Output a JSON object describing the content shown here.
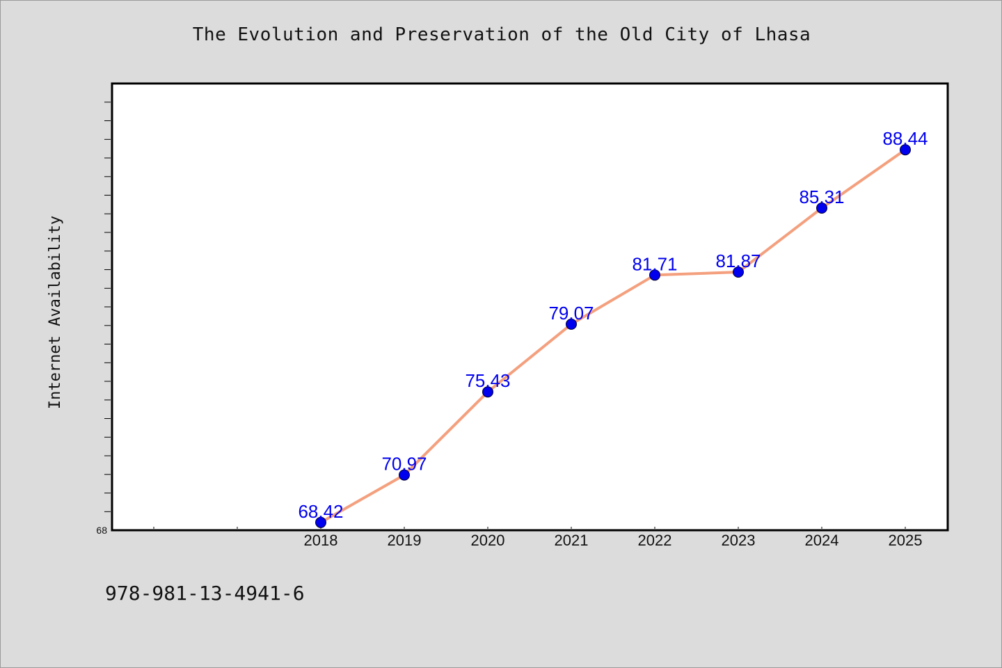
{
  "chart_data": {
    "type": "line",
    "title": "The Evolution and Preservation of the Old City of Lhasa",
    "xlabel": "",
    "ylabel": "Internet Availability",
    "categories": [
      "2018",
      "2019",
      "2020",
      "2021",
      "2022",
      "2023",
      "2024",
      "2025"
    ],
    "series": [
      {
        "values": [
          68.42,
          70.97,
          75.43,
          79.07,
          81.71,
          81.87,
          85.31,
          88.44
        ],
        "data_labels": [
          "68.42",
          "70.97",
          "75.43",
          "79.07",
          "81.71",
          "81.87",
          "85.31",
          "88.44"
        ],
        "line_color": "#f4a07e",
        "marker_color": "#0000ee",
        "label_color": "#0000ee"
      }
    ],
    "y_tick_labels": [
      "68"
    ],
    "ylim": [
      68,
      92
    ],
    "grid": false,
    "legend": "none"
  },
  "footer": {
    "isbn": "978-981-13-4941-6"
  }
}
